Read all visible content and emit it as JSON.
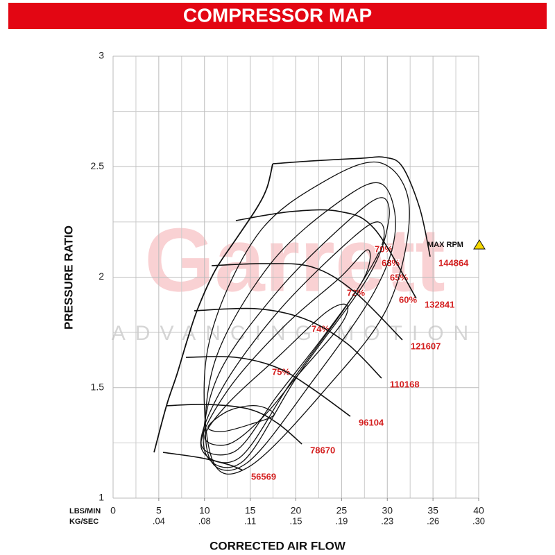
{
  "chart_data": {
    "type": "compressor-map",
    "title": "COMPRESSOR MAP",
    "xlabel": "CORRECTED AIR FLOW",
    "ylabel": "PRESSURE RATIO",
    "x_unit_label": "LBS/MIN",
    "x2_unit_label": "KG/SEC",
    "watermark": "Garrett",
    "watermark_tagline": "ADVANCING MOTION",
    "max_rpm_label": "MAX RPM",
    "xlim": [
      0,
      40
    ],
    "xticks": [
      0,
      5,
      10,
      15,
      20,
      25,
      30,
      35,
      40
    ],
    "minor_xticks": [
      2.5,
      7.5,
      12.5,
      17.5,
      22.5,
      27.5,
      32.5,
      37.5
    ],
    "x2lim": [
      0,
      0.3024
    ],
    "x2ticks": [
      {
        "value": 0.0378,
        "label": ".04"
      },
      {
        "value": 0.0756,
        "label": ".08"
      },
      {
        "value": 0.1134,
        "label": ".11"
      },
      {
        "value": 0.1512,
        "label": ".15"
      },
      {
        "value": 0.189,
        "label": ".19"
      },
      {
        "value": 0.2268,
        "label": ".23"
      },
      {
        "value": 0.2646,
        "label": ".26"
      },
      {
        "value": 0.3024,
        "label": ".30"
      }
    ],
    "ylim": [
      1,
      3
    ],
    "yticks": [
      1,
      1.5,
      2,
      2.5,
      3
    ],
    "minor_yticks": [
      1.25,
      1.75,
      2.25,
      2.75
    ],
    "grid": true,
    "line_color": "#111111",
    "label_color": "#d42020",
    "surge_line": {
      "x": [
        4.48,
        5.84,
        6.98,
        8.12,
        9.26,
        11.16,
        13.43,
        15.71,
        16.85,
        17.46
      ],
      "y": [
        1.207,
        1.418,
        1.559,
        1.716,
        1.857,
        2.03,
        2.171,
        2.312,
        2.406,
        2.513
      ]
    },
    "speed_lines": [
      {
        "name": "56569",
        "x": [
          5.47,
          9.64,
          12.68,
          14.19
        ],
        "y": [
          1.207,
          1.182,
          1.151,
          1.126
        ]
      },
      {
        "name": "78670",
        "x": [
          5.84,
          10.4,
          14.95,
          17.99,
          20.65
        ],
        "y": [
          1.418,
          1.424,
          1.402,
          1.339,
          1.245
        ]
      },
      {
        "name": "96104",
        "x": [
          7.97,
          13.43,
          17.99,
          21.78,
          25.96
        ],
        "y": [
          1.637,
          1.637,
          1.59,
          1.496,
          1.37
        ]
      },
      {
        "name": "110168",
        "x": [
          8.88,
          15.71,
          21.02,
          25.58,
          29.37
        ],
        "y": [
          1.848,
          1.857,
          1.81,
          1.7,
          1.543
        ]
      },
      {
        "name": "121607",
        "x": [
          10.78,
          16.47,
          21.78,
          26.34,
          31.65
        ],
        "y": [
          2.052,
          2.061,
          2.046,
          1.936,
          1.716
        ]
      },
      {
        "name": "132841",
        "x": [
          13.43,
          19.5,
          24.82,
          28.61,
          33.17
        ],
        "y": [
          2.256,
          2.297,
          2.297,
          2.218,
          1.904
        ]
      },
      {
        "name": "144864",
        "x": [
          17.46,
          21.78,
          27.1,
          29.75,
          31.65,
          33.55,
          34.69
        ],
        "y": [
          2.513,
          2.526,
          2.538,
          2.542,
          2.5,
          2.312,
          2.093
        ]
      }
    ],
    "efficiency_islands": [
      {
        "name": "75%",
        "x": [
          10.4,
          12.68,
          15.71,
          17.61,
          14.95,
          11.92
        ],
        "y": [
          1.323,
          1.396,
          1.418,
          1.377,
          1.333,
          1.301
        ]
      },
      {
        "name": "74%",
        "x": [
          10.02,
          12.68,
          17.99,
          23.3,
          25.58,
          24.82,
          20.27,
          16.47,
          12.68
        ],
        "y": [
          1.276,
          1.433,
          1.637,
          1.841,
          1.873,
          1.779,
          1.559,
          1.37,
          1.245
        ]
      },
      {
        "name": "72%",
        "x": [
          9.64,
          12.68,
          18.75,
          24.82,
          27.86,
          27.48,
          23.3,
          17.99,
          13.43
        ],
        "y": [
          1.245,
          1.496,
          1.779,
          1.998,
          2.124,
          1.998,
          1.747,
          1.465,
          1.214
        ]
      },
      {
        "name": "70%",
        "x": [
          9.64,
          11.92,
          17.99,
          25.58,
          28.99,
          29.37,
          25.58,
          19.51,
          13.81
        ],
        "y": [
          1.229,
          1.496,
          1.841,
          2.155,
          2.25,
          2.14,
          1.873,
          1.527,
          1.182
        ]
      },
      {
        "name": "68%",
        "x": [
          10.02,
          11.54,
          17.99,
          25.58,
          29.37,
          30.13,
          27.86,
          20.27,
          14.19
        ],
        "y": [
          1.214,
          1.559,
          1.936,
          2.25,
          2.36,
          2.25,
          1.998,
          1.559,
          1.166
        ]
      },
      {
        "name": "65%",
        "x": [
          10.4,
          11.16,
          17.23,
          24.82,
          29.37,
          30.89,
          28.61,
          21.78,
          14.57
        ],
        "y": [
          1.198,
          1.622,
          2.061,
          2.344,
          2.422,
          2.218,
          1.936,
          1.527,
          1.157
        ]
      },
      {
        "name": "60%",
        "x": [
          10.78,
          10.4,
          15.71,
          23.3,
          29.37,
          32.41,
          30.13,
          23.3,
          14.95
        ],
        "y": [
          1.182,
          1.684,
          2.187,
          2.438,
          2.516,
          2.312,
          1.873,
          1.496,
          1.144
        ]
      }
    ]
  }
}
